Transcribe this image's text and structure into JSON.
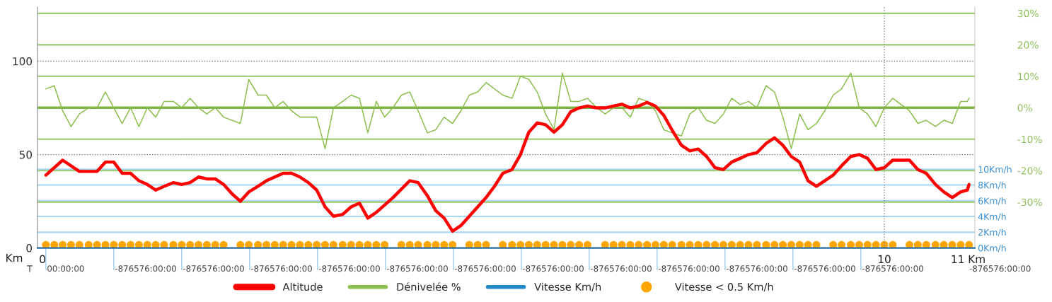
{
  "chart_data": {
    "type": "line",
    "xlabel": "Km",
    "xlim": [
      -0.1,
      11.08
    ],
    "xticks": [
      0,
      10,
      {
        "value": 11,
        "label": "11 Km"
      }
    ],
    "ylim": [
      0,
      129
    ],
    "yticks": [
      0,
      50,
      100
    ],
    "y2lim": [
      -44.6,
      32
    ],
    "y2ticks": [
      {
        "value": 30,
        "label": "30%"
      },
      {
        "value": 20,
        "label": "20%"
      },
      {
        "value": 10,
        "label": "10%"
      },
      {
        "value": 0,
        "label": "0%"
      },
      {
        "value": -10,
        "label": "-10%"
      },
      {
        "value": -20,
        "label": "-20%"
      },
      {
        "value": -30,
        "label": "-30%"
      }
    ],
    "y3lim": [
      0,
      30.6
    ],
    "y3ticks": [
      {
        "value": 10,
        "label": "10Km/h"
      },
      {
        "value": 8,
        "label": "8Km/h"
      },
      {
        "value": 6,
        "label": "6Km/h"
      },
      {
        "value": 4,
        "label": "4Km/h"
      },
      {
        "value": 2,
        "label": "2Km/h"
      },
      {
        "value": 0,
        "label": "0Km/h"
      }
    ],
    "grid": "y",
    "legend": "bottom",
    "ref_lines": [
      {
        "axis": "x",
        "value": 10,
        "color": "#888888",
        "line_style": "dotted"
      },
      {
        "axis": "y2",
        "value": 0,
        "color": "#7db443",
        "line_style": "solid"
      }
    ],
    "annotations": [
      "T",
      "00:00:00",
      "-876576:00:00",
      "-876576:00:00",
      "-876576:00:00",
      "-876576:00:00",
      "-876576:00:00",
      "-876576:00:00",
      "-876576:00:00",
      "-876576:00:00",
      "-876576:00:00",
      "-876576:00:00",
      "-876576:00:00",
      "-876576:00:00",
      "-876576:00:00"
    ],
    "series": [
      {
        "name": "Altitude",
        "color": "#ff0000",
        "x": [
          0,
          0.2,
          0.4,
          0.61,
          0.71,
          0.81,
          0.91,
          1.01,
          1.11,
          1.21,
          1.31,
          1.41,
          1.52,
          1.62,
          1.72,
          1.82,
          1.92,
          2.02,
          2.12,
          2.22,
          2.32,
          2.42,
          2.53,
          2.63,
          2.83,
          2.93,
          3.03,
          3.13,
          3.23,
          3.33,
          3.43,
          3.54,
          3.64,
          3.74,
          3.84,
          3.94,
          4.04,
          4.14,
          4.34,
          4.44,
          4.55,
          4.65,
          4.75,
          4.85,
          4.95,
          5.05,
          5.15,
          5.25,
          5.35,
          5.45,
          5.56,
          5.66,
          5.76,
          5.86,
          5.96,
          6.06,
          6.16,
          6.26,
          6.36,
          6.46,
          6.57,
          6.67,
          6.77,
          6.87,
          6.97,
          7.07,
          7.17,
          7.27,
          7.37,
          7.47,
          7.58,
          7.68,
          7.78,
          7.88,
          7.98,
          8.08,
          8.18,
          8.28,
          8.38,
          8.48,
          8.59,
          8.69,
          8.79,
          8.89,
          8.99,
          9.09,
          9.19,
          9.29,
          9.39,
          9.49,
          9.6,
          9.7,
          9.8,
          9.9,
          10,
          10.1,
          10.3,
          10.4,
          10.5,
          10.61,
          10.71,
          10.81,
          10.91,
          10.99,
          11.01
        ],
        "values": [
          39,
          47,
          41,
          41,
          46,
          46,
          40,
          40,
          36,
          34,
          31,
          33,
          35,
          34,
          35,
          38,
          37,
          37,
          34,
          29,
          25,
          30,
          33,
          36,
          40,
          40,
          38,
          35,
          31,
          22,
          17,
          18,
          22,
          24,
          16,
          19,
          23,
          27,
          36,
          35,
          28,
          20,
          16,
          9,
          12,
          17,
          22,
          27,
          33,
          40,
          42,
          50,
          62,
          67,
          66,
          62,
          66,
          73,
          75,
          76,
          75,
          75,
          76,
          77,
          75,
          76,
          78,
          76,
          71,
          63,
          55,
          52,
          53,
          49,
          43,
          42,
          46,
          48,
          50,
          51,
          56,
          59,
          55,
          49,
          46,
          36,
          33,
          36,
          39,
          44,
          49,
          50,
          48,
          42,
          43,
          47,
          47,
          42,
          40,
          34,
          30,
          27,
          30,
          31,
          34
        ]
      },
      {
        "name": "Dénivelée %",
        "axis": "y2",
        "color": "#8cbf4f",
        "x": [
          0,
          0.1,
          0.2,
          0.3,
          0.4,
          0.51,
          0.61,
          0.71,
          0.81,
          0.91,
          1.01,
          1.11,
          1.21,
          1.31,
          1.41,
          1.52,
          1.62,
          1.72,
          1.82,
          1.92,
          2.02,
          2.12,
          2.32,
          2.42,
          2.53,
          2.63,
          2.73,
          2.83,
          2.93,
          3.03,
          3.23,
          3.33,
          3.43,
          3.54,
          3.64,
          3.74,
          3.84,
          3.94,
          4.04,
          4.14,
          4.24,
          4.34,
          4.44,
          4.55,
          4.65,
          4.75,
          4.85,
          4.95,
          5.05,
          5.15,
          5.25,
          5.35,
          5.45,
          5.56,
          5.66,
          5.76,
          5.86,
          5.96,
          6.06,
          6.16,
          6.26,
          6.36,
          6.46,
          6.57,
          6.67,
          6.77,
          6.87,
          6.97,
          7.07,
          7.17,
          7.27,
          7.37,
          7.47,
          7.58,
          7.68,
          7.78,
          7.88,
          7.98,
          8.08,
          8.18,
          8.28,
          8.38,
          8.48,
          8.59,
          8.69,
          8.79,
          8.89,
          8.99,
          9.09,
          9.19,
          9.29,
          9.39,
          9.49,
          9.6,
          9.7,
          9.8,
          9.9,
          10,
          10.1,
          10.2,
          10.3,
          10.4,
          10.5,
          10.61,
          10.71,
          10.81,
          10.91,
          10.99,
          11.01
        ],
        "values": [
          6,
          7,
          -1,
          -6,
          -2,
          0,
          0,
          5,
          0,
          -5,
          0,
          -6,
          0,
          -3,
          2,
          2,
          0,
          3,
          0,
          -2,
          0,
          -3,
          -5,
          9,
          4,
          4,
          0,
          2,
          -1,
          -3,
          -3,
          -13,
          0,
          2,
          4,
          3,
          -8,
          2,
          -3,
          0,
          4,
          5,
          -1,
          -8,
          -7,
          -3,
          -5,
          -1,
          4,
          5,
          8,
          6,
          4,
          3,
          10,
          9,
          5,
          -2,
          -7,
          11,
          2,
          2,
          3,
          0,
          -2,
          0,
          0,
          -3,
          3,
          2,
          -1,
          -7,
          -8,
          -9,
          -2,
          0,
          -4,
          -5,
          -2,
          3,
          1,
          2,
          0,
          7,
          5,
          -3,
          -13,
          -2,
          -7,
          -5,
          -1,
          4,
          6,
          11,
          0,
          -2,
          -6,
          0,
          3,
          1,
          -1,
          -5,
          -4,
          -6,
          -4,
          -5,
          2,
          2,
          3
        ]
      },
      {
        "name": "Vitesse Km/h",
        "axis": "y3",
        "color": "#1e88c8"
      },
      {
        "name": "Vitesse < 0.5 Km/h",
        "type": "scatter",
        "axis": "y3",
        "color": "#ffa500",
        "marker": "circle",
        "x": [
          0,
          0.1,
          0.2,
          0.3,
          0.4,
          0.51,
          0.61,
          0.71,
          0.81,
          0.91,
          1.01,
          1.11,
          1.21,
          1.31,
          1.41,
          1.52,
          1.62,
          1.72,
          1.82,
          1.92,
          2.02,
          2.12,
          2.32,
          2.42,
          2.53,
          2.63,
          2.73,
          2.83,
          2.93,
          3.03,
          3.13,
          3.23,
          3.33,
          3.43,
          3.54,
          3.64,
          3.74,
          3.84,
          3.94,
          4.04,
          4.24,
          4.34,
          4.44,
          4.55,
          4.65,
          4.75,
          4.85,
          5.05,
          5.15,
          5.25,
          5.45,
          5.56,
          5.66,
          5.76,
          5.86,
          5.96,
          6.06,
          6.16,
          6.26,
          6.36,
          6.46,
          6.67,
          6.77,
          6.87,
          6.97,
          7.07,
          7.17,
          7.27,
          7.37,
          7.47,
          7.58,
          7.68,
          7.78,
          7.88,
          7.98,
          8.08,
          8.18,
          8.28,
          8.38,
          8.48,
          8.59,
          8.69,
          8.79,
          8.89,
          8.99,
          9.09,
          9.19,
          9.39,
          9.49,
          9.6,
          9.7,
          9.8,
          9.9,
          10,
          10.1,
          10.3,
          10.4,
          10.5,
          10.61,
          10.71,
          10.81,
          10.91,
          11.01
        ],
        "values": [
          0.4,
          0.4,
          0.4,
          0.4,
          0.4,
          0.4,
          0.4,
          0.4,
          0.4,
          0.4,
          0.4,
          0.4,
          0.4,
          0.4,
          0.4,
          0.4,
          0.4,
          0.4,
          0.4,
          0.4,
          0.4,
          0.4,
          0.4,
          0.4,
          0.4,
          0.4,
          0.4,
          0.4,
          0.4,
          0.4,
          0.4,
          0.4,
          0.4,
          0.4,
          0.4,
          0.4,
          0.4,
          0.4,
          0.4,
          0.4,
          0.4,
          0.4,
          0.4,
          0.4,
          0.4,
          0.4,
          0.4,
          0.4,
          0.4,
          0.4,
          0.4,
          0.4,
          0.4,
          0.4,
          0.4,
          0.4,
          0.4,
          0.4,
          0.4,
          0.4,
          0.4,
          0.4,
          0.4,
          0.4,
          0.4,
          0.4,
          0.4,
          0.4,
          0.4,
          0.4,
          0.4,
          0.4,
          0.4,
          0.4,
          0.4,
          0.4,
          0.4,
          0.4,
          0.4,
          0.4,
          0.4,
          0.4,
          0.4,
          0.4,
          0.4,
          0.4,
          0.4,
          0.4,
          0.4,
          0.4,
          0.4,
          0.4,
          0.4,
          0.4,
          0.4,
          0.4,
          0.4,
          0.4,
          0.4,
          0.4,
          0.4,
          0.4,
          0.4
        ]
      }
    ]
  }
}
